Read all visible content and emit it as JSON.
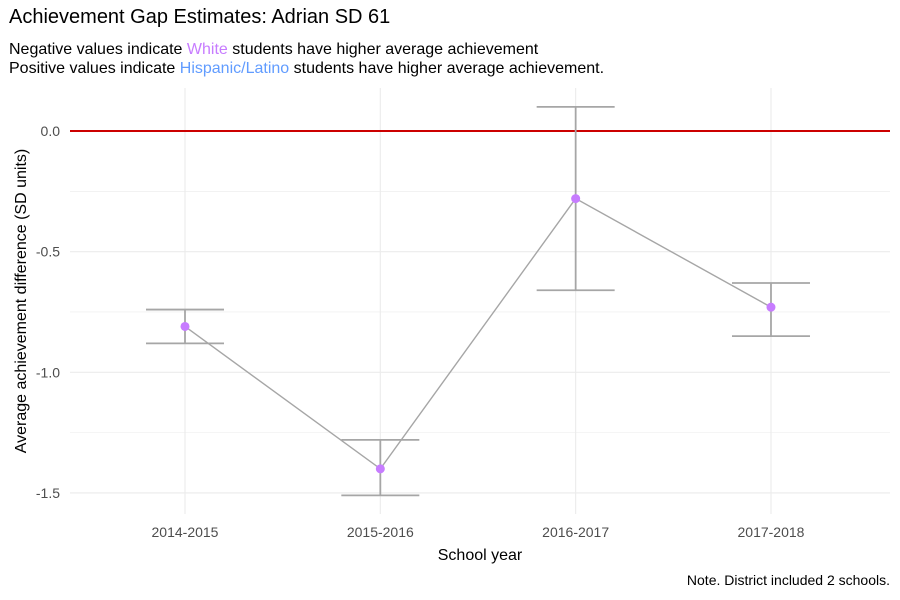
{
  "title": "Achievement Gap Estimates: Adrian SD 61",
  "subtitle": {
    "line1_pre": "Negative values indicate ",
    "line1_highlight": "White",
    "line1_post": " students have higher average achievement",
    "line2_pre": "Positive values indicate ",
    "line2_highlight": "Hispanic/Latino",
    "line2_post": " students have higher average achievement."
  },
  "caption": "Note. District included 2 schools.",
  "colors": {
    "white_group": "#c77cff",
    "hispanic_group": "#619cff",
    "reference_line": "#cc0000",
    "line_and_errorbars": "#a6a6a6",
    "point": "#c77cff",
    "grid": "#ebebeb"
  },
  "chart_data": {
    "type": "line",
    "xlabel": "School year",
    "ylabel": "Average achievement difference (SD units)",
    "categories": [
      "2014-2015",
      "2015-2016",
      "2016-2017",
      "2017-2018"
    ],
    "values": [
      -0.81,
      -1.4,
      -0.28,
      -0.73
    ],
    "lower": [
      -0.88,
      -1.51,
      -0.66,
      -0.85
    ],
    "upper": [
      -0.74,
      -1.28,
      0.1,
      -0.63
    ],
    "reference_line": 0,
    "ylim": [
      -1.59,
      0.18
    ],
    "yticks": [
      0.0,
      -0.5,
      -1.0,
      -1.5
    ],
    "ytick_labels": [
      "0.0",
      "-0.5",
      "-1.0",
      "-1.5"
    ],
    "grid": true
  }
}
